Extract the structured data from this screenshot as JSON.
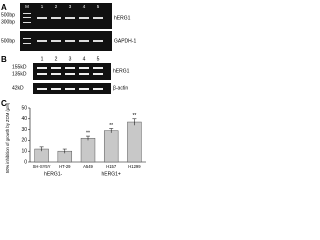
{
  "panel_a": {
    "label": "A",
    "lanes": [
      "M",
      "1",
      "2",
      "3",
      "4",
      "5"
    ],
    "markers": [
      "500bp",
      "300bp",
      "500bp"
    ],
    "bands": [
      "hERG1",
      "GAPDH-1"
    ]
  },
  "panel_b": {
    "label": "B",
    "lanes": [
      "1",
      "2",
      "3",
      "4",
      "5"
    ],
    "markers": [
      "155kD",
      "135kD",
      "42kD"
    ],
    "bands": [
      "hERG1",
      "β-actin"
    ]
  },
  "chart_data": {
    "type": "bar",
    "panel_label": "C",
    "y_label": "50% inhibition of growth by ZOM (µM)",
    "categories": [
      "SH-SY5Y",
      "HT-29",
      "A549",
      "H157",
      "H1299"
    ],
    "values": [
      12,
      10,
      22,
      29,
      37
    ],
    "errors": [
      2,
      2,
      2,
      2,
      3
    ],
    "annotations": [
      null,
      null,
      "**",
      "**",
      "**"
    ],
    "group_labels": [
      "hERG1-",
      "hERG1+"
    ],
    "color": "#c8c8c8",
    "ylim": [
      0,
      50
    ],
    "yticks": [
      0,
      10,
      20,
      30,
      40,
      50
    ]
  }
}
